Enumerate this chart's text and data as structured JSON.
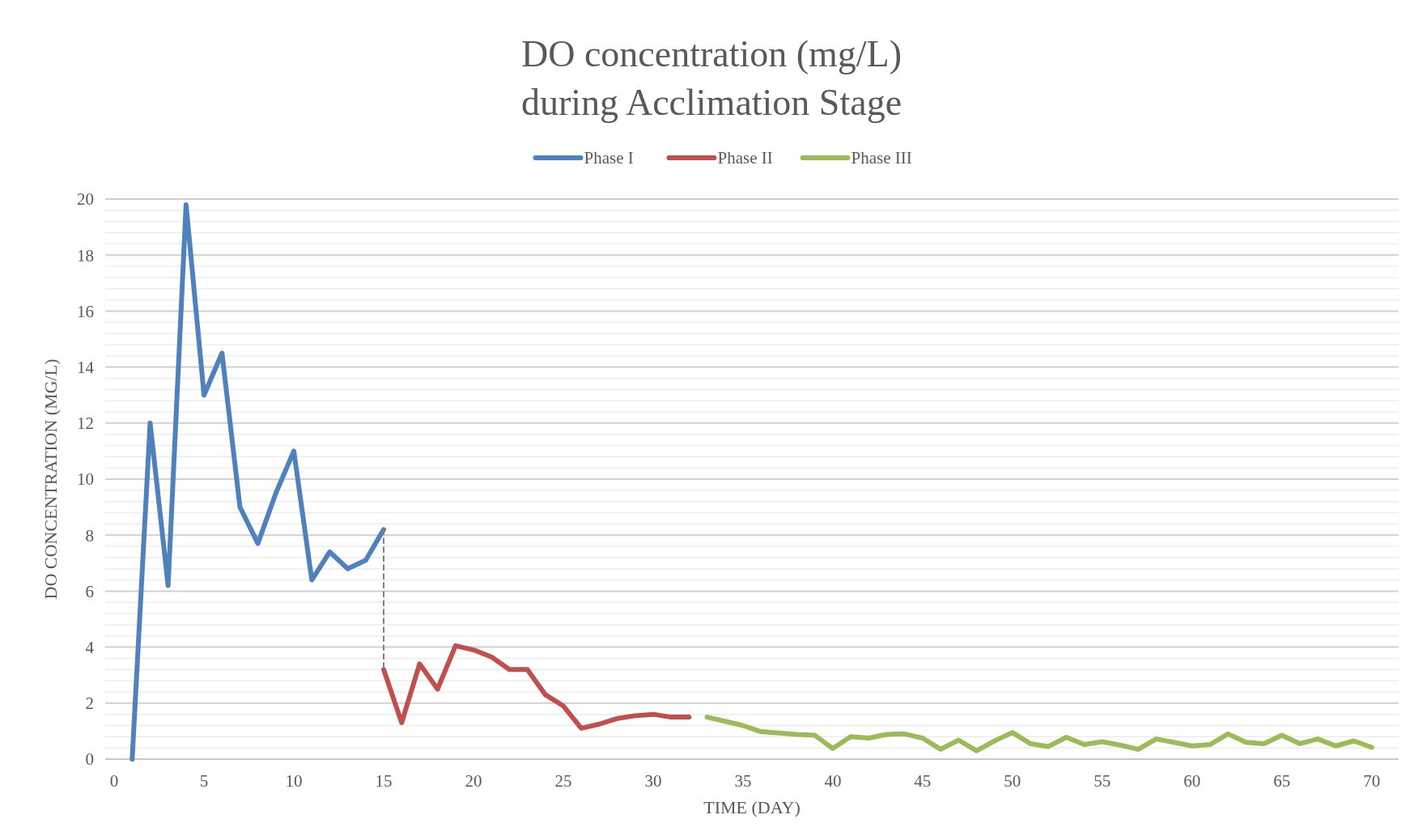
{
  "chart_data": {
    "type": "line",
    "title": "DO concentration (mg/L)\nduring Acclimation Stage",
    "xlabel": "TIME (DAY)",
    "ylabel": "DO CONCENTRATION (MG/L)",
    "xlim": [
      -0.5,
      71.5
    ],
    "xticks": [
      0,
      5,
      10,
      15,
      20,
      25,
      30,
      35,
      40,
      45,
      50,
      55,
      60,
      65,
      70
    ],
    "ylim": [
      0,
      20
    ],
    "yticks": [
      0,
      {
        "value": 0.4,
        "label": null
      },
      {
        "value": 0.8,
        "label": null
      },
      {
        "value": 1.2,
        "label": null
      },
      {
        "value": 1.6,
        "label": null
      },
      2,
      {
        "value": 2.4,
        "label": null
      },
      {
        "value": 2.8,
        "label": null
      },
      {
        "value": 3.2,
        "label": null
      },
      {
        "value": 3.6,
        "label": null
      },
      4,
      {
        "value": 4.4,
        "label": null
      },
      {
        "value": 4.8,
        "label": null
      },
      {
        "value": 5.2,
        "label": null
      },
      {
        "value": 5.6,
        "label": null
      },
      6,
      {
        "value": 6.4,
        "label": null
      },
      {
        "value": 6.8,
        "label": null
      },
      {
        "value": 7.2,
        "label": null
      },
      {
        "value": 7.6,
        "label": null
      },
      8,
      {
        "value": 8.4,
        "label": null
      },
      {
        "value": 8.8,
        "label": null
      },
      {
        "value": 9.2,
        "label": null
      },
      {
        "value": 9.6,
        "label": null
      },
      10,
      {
        "value": 10.4,
        "label": null
      },
      {
        "value": 10.8,
        "label": null
      },
      {
        "value": 11.2,
        "label": null
      },
      {
        "value": 11.6,
        "label": null
      },
      12,
      {
        "value": 12.4,
        "label": null
      },
      {
        "value": 12.8,
        "label": null
      },
      {
        "value": 13.2,
        "label": null
      },
      {
        "value": 13.6,
        "label": null
      },
      14,
      {
        "value": 14.4,
        "label": null
      },
      {
        "value": 14.8,
        "label": null
      },
      {
        "value": 15.2,
        "label": null
      },
      {
        "value": 15.6,
        "label": null
      },
      16,
      {
        "value": 16.4,
        "label": null
      },
      {
        "value": 16.8,
        "label": null
      },
      {
        "value": 17.2,
        "label": null
      },
      {
        "value": 17.6,
        "label": null
      },
      18,
      {
        "value": 18.4,
        "label": null
      },
      {
        "value": 18.8,
        "label": null
      },
      {
        "value": 19.2,
        "label": null
      },
      {
        "value": 19.6,
        "label": null
      },
      20
    ],
    "grid": "y",
    "legend": "top",
    "marker": "none",
    "series": [
      {
        "name": "Phase I",
        "color": "#4f81bd",
        "x": [
          1,
          2,
          3,
          4,
          5,
          6,
          7,
          8,
          9,
          10,
          11,
          12,
          13,
          14,
          15
        ],
        "values": [
          0,
          12,
          6.2,
          19.8,
          13,
          14.5,
          9,
          7.7,
          9.5,
          11,
          6.4,
          7.4,
          6.8,
          7.1,
          8.2
        ]
      },
      {
        "name": "Phase II",
        "color": "#c0504d",
        "x": [
          15,
          16,
          17,
          18,
          19,
          20,
          21,
          22,
          23,
          24,
          25,
          26,
          27,
          28,
          29,
          30,
          31,
          32
        ],
        "values": [
          3.2,
          1.3,
          3.4,
          2.5,
          4.05,
          3.9,
          3.65,
          3.2,
          3.2,
          2.3,
          1.9,
          1.1,
          1.25,
          1.45,
          1.55,
          1.6,
          1.5,
          1.5
        ]
      },
      {
        "name": "Phase III",
        "color": "#9bbb59",
        "x": [
          33,
          34,
          35,
          36,
          37,
          38,
          39,
          40,
          41,
          42,
          43,
          44,
          45,
          46,
          47,
          48,
          49,
          50,
          51,
          52,
          53,
          54,
          55,
          56,
          57,
          58,
          59,
          60,
          61,
          62,
          63,
          64,
          65,
          66,
          67,
          68,
          69,
          70
        ],
        "values": [
          1.5,
          1.35,
          1.2,
          0.98,
          0.93,
          0.88,
          0.85,
          0.38,
          0.8,
          0.75,
          0.88,
          0.9,
          0.75,
          0.35,
          0.68,
          0.3,
          0.65,
          0.95,
          0.55,
          0.45,
          0.78,
          0.52,
          0.62,
          0.5,
          0.35,
          0.72,
          0.6,
          0.47,
          0.52,
          0.9,
          0.6,
          0.55,
          0.85,
          0.55,
          0.72,
          0.47,
          0.65,
          0.42
        ]
      },
      {
        "color": "#808080",
        "line_style": "dashed",
        "x": [
          15,
          15
        ],
        "values": [
          8.2,
          3.2
        ]
      }
    ]
  }
}
